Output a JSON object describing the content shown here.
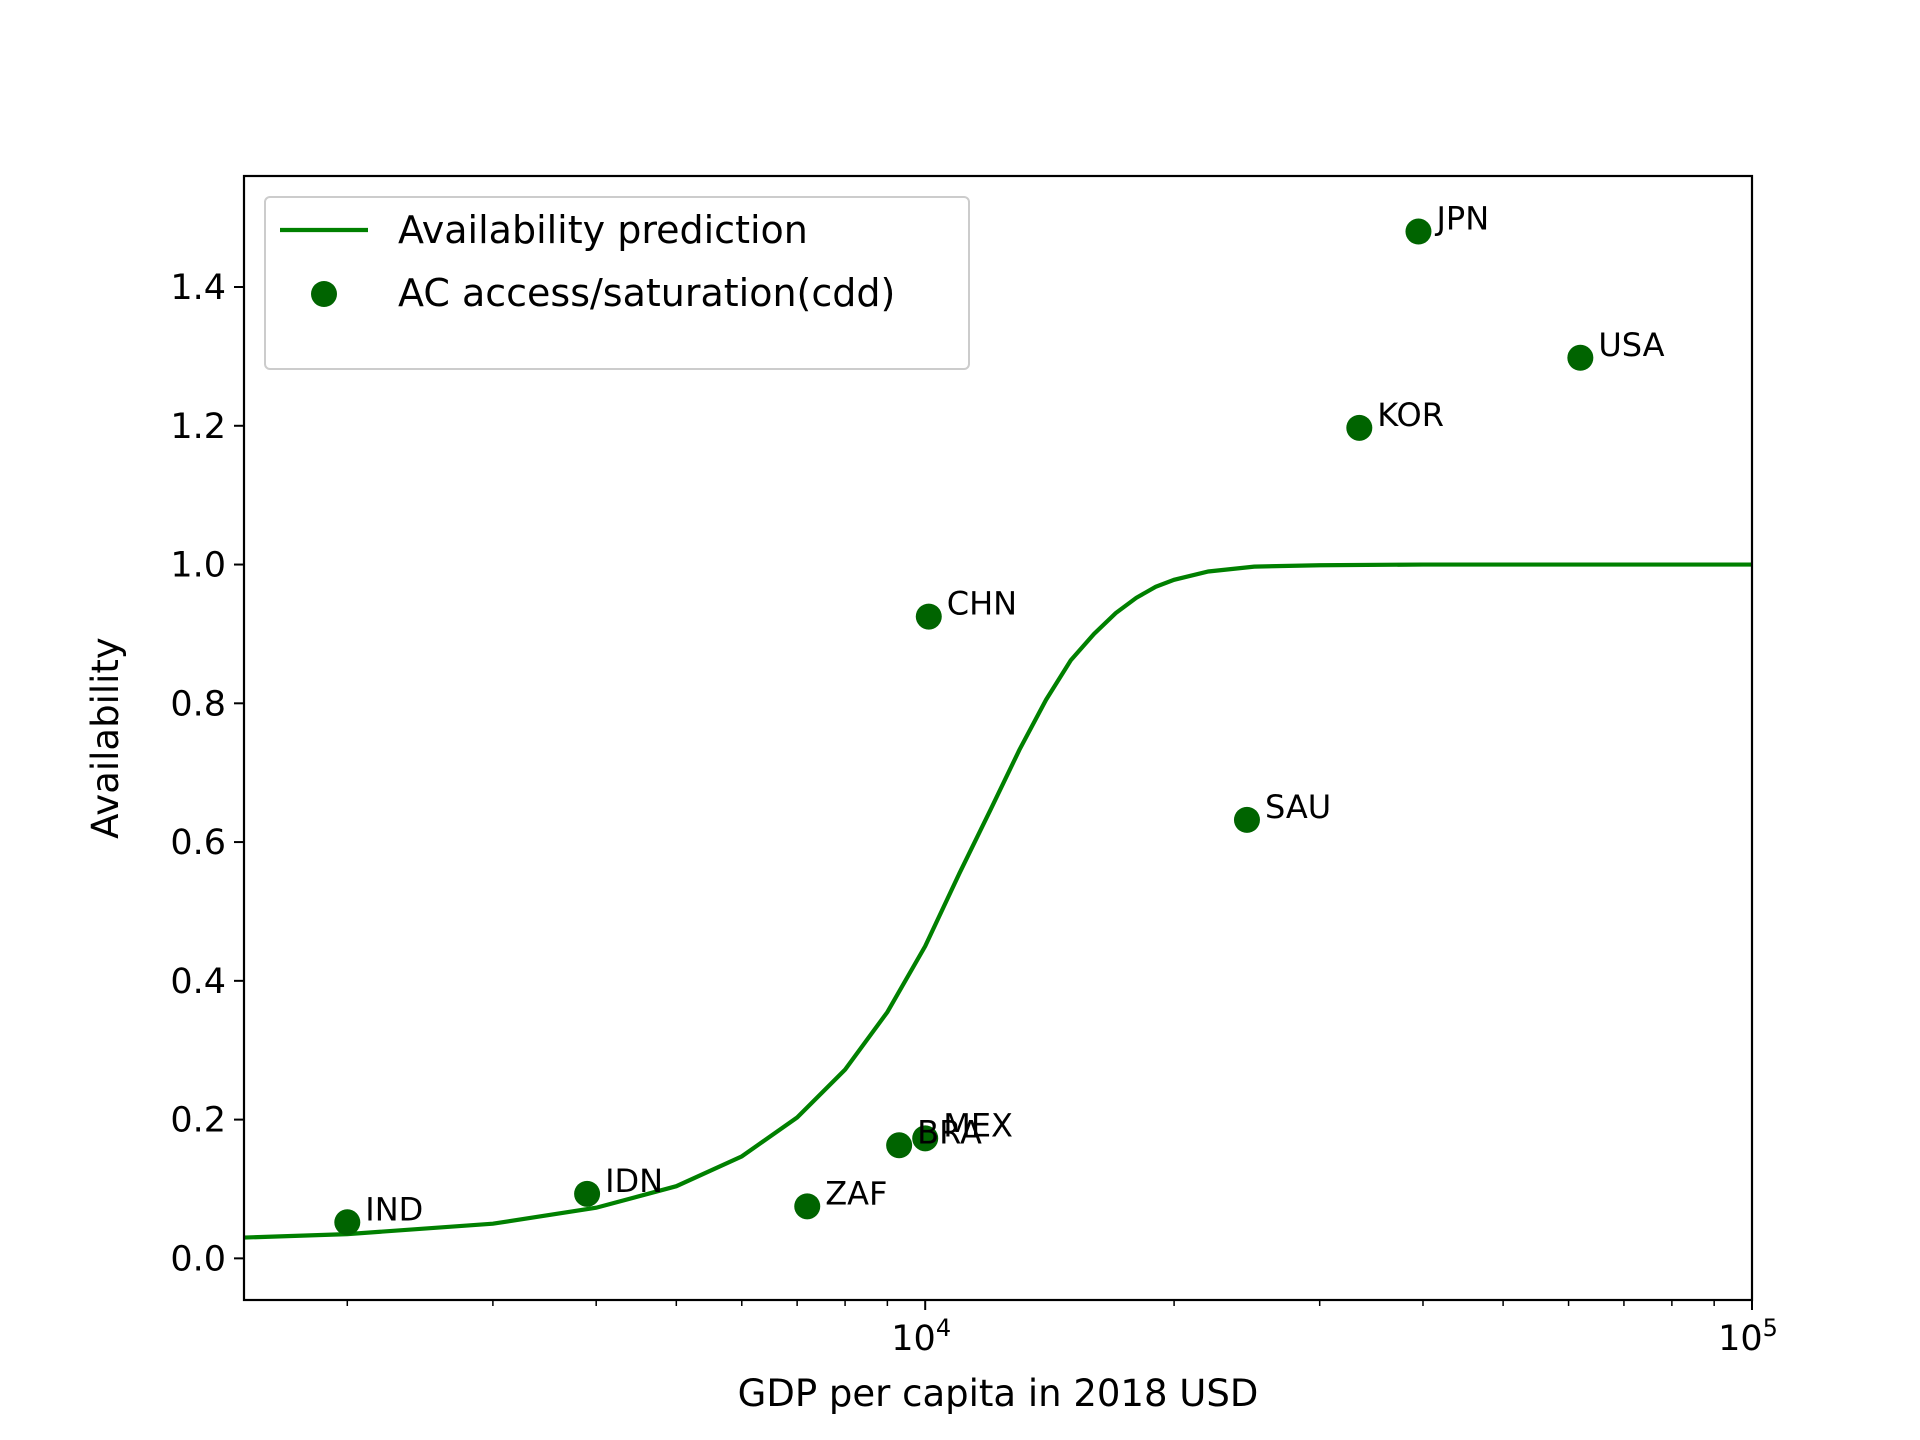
{
  "chart_data": {
    "type": "scatter",
    "title": "",
    "xlabel": "GDP per capita in 2018 USD",
    "ylabel": "Availability",
    "xscale": "log",
    "xlim": [
      1500,
      100000
    ],
    "ylim": [
      -0.06,
      1.56
    ],
    "grid": false,
    "legend_position": "top-left",
    "x_ticks": [
      {
        "value": 10000,
        "base": "10",
        "exp": "4"
      },
      {
        "value": 100000,
        "base": "10",
        "exp": "5"
      }
    ],
    "y_ticks": [
      {
        "value": 0.0,
        "label": "0.0"
      },
      {
        "value": 0.2,
        "label": "0.2"
      },
      {
        "value": 0.4,
        "label": "0.4"
      },
      {
        "value": 0.6,
        "label": "0.6"
      },
      {
        "value": 0.8,
        "label": "0.8"
      },
      {
        "value": 1.0,
        "label": "1.0"
      },
      {
        "value": 1.2,
        "label": "1.2"
      },
      {
        "value": 1.4,
        "label": "1.4"
      }
    ],
    "series": [
      {
        "name": "Availability prediction",
        "kind": "line",
        "color": "#008000",
        "x": [
          1500,
          2000,
          3000,
          4000,
          5000,
          6000,
          7000,
          8000,
          9000,
          10000,
          11000,
          12000,
          13000,
          14000,
          15000,
          16000,
          17000,
          18000,
          19000,
          20000,
          22000,
          25000,
          30000,
          40000,
          60000,
          100000
        ],
        "y": [
          0.03,
          0.035,
          0.05,
          0.073,
          0.104,
          0.147,
          0.203,
          0.272,
          0.355,
          0.45,
          0.555,
          0.647,
          0.733,
          0.805,
          0.862,
          0.9,
          0.93,
          0.952,
          0.968,
          0.978,
          0.99,
          0.997,
          0.999,
          1.0,
          1.0,
          1.0
        ]
      },
      {
        "name": "AC access/saturation(cdd)",
        "kind": "scatter",
        "color": "#006400",
        "points": [
          {
            "label": "IND",
            "x": 2000,
            "y": 0.052
          },
          {
            "label": "IDN",
            "x": 3900,
            "y": 0.093
          },
          {
            "label": "ZAF",
            "x": 7200,
            "y": 0.075
          },
          {
            "label": "BRA",
            "x": 9300,
            "y": 0.163
          },
          {
            "label": "MEX",
            "x": 10000,
            "y": 0.173
          },
          {
            "label": "CHN",
            "x": 10100,
            "y": 0.925
          },
          {
            "label": "SAU",
            "x": 24500,
            "y": 0.632
          },
          {
            "label": "KOR",
            "x": 33500,
            "y": 1.197
          },
          {
            "label": "JPN",
            "x": 39500,
            "y": 1.48
          },
          {
            "label": "USA",
            "x": 62000,
            "y": 1.298
          }
        ]
      }
    ]
  }
}
